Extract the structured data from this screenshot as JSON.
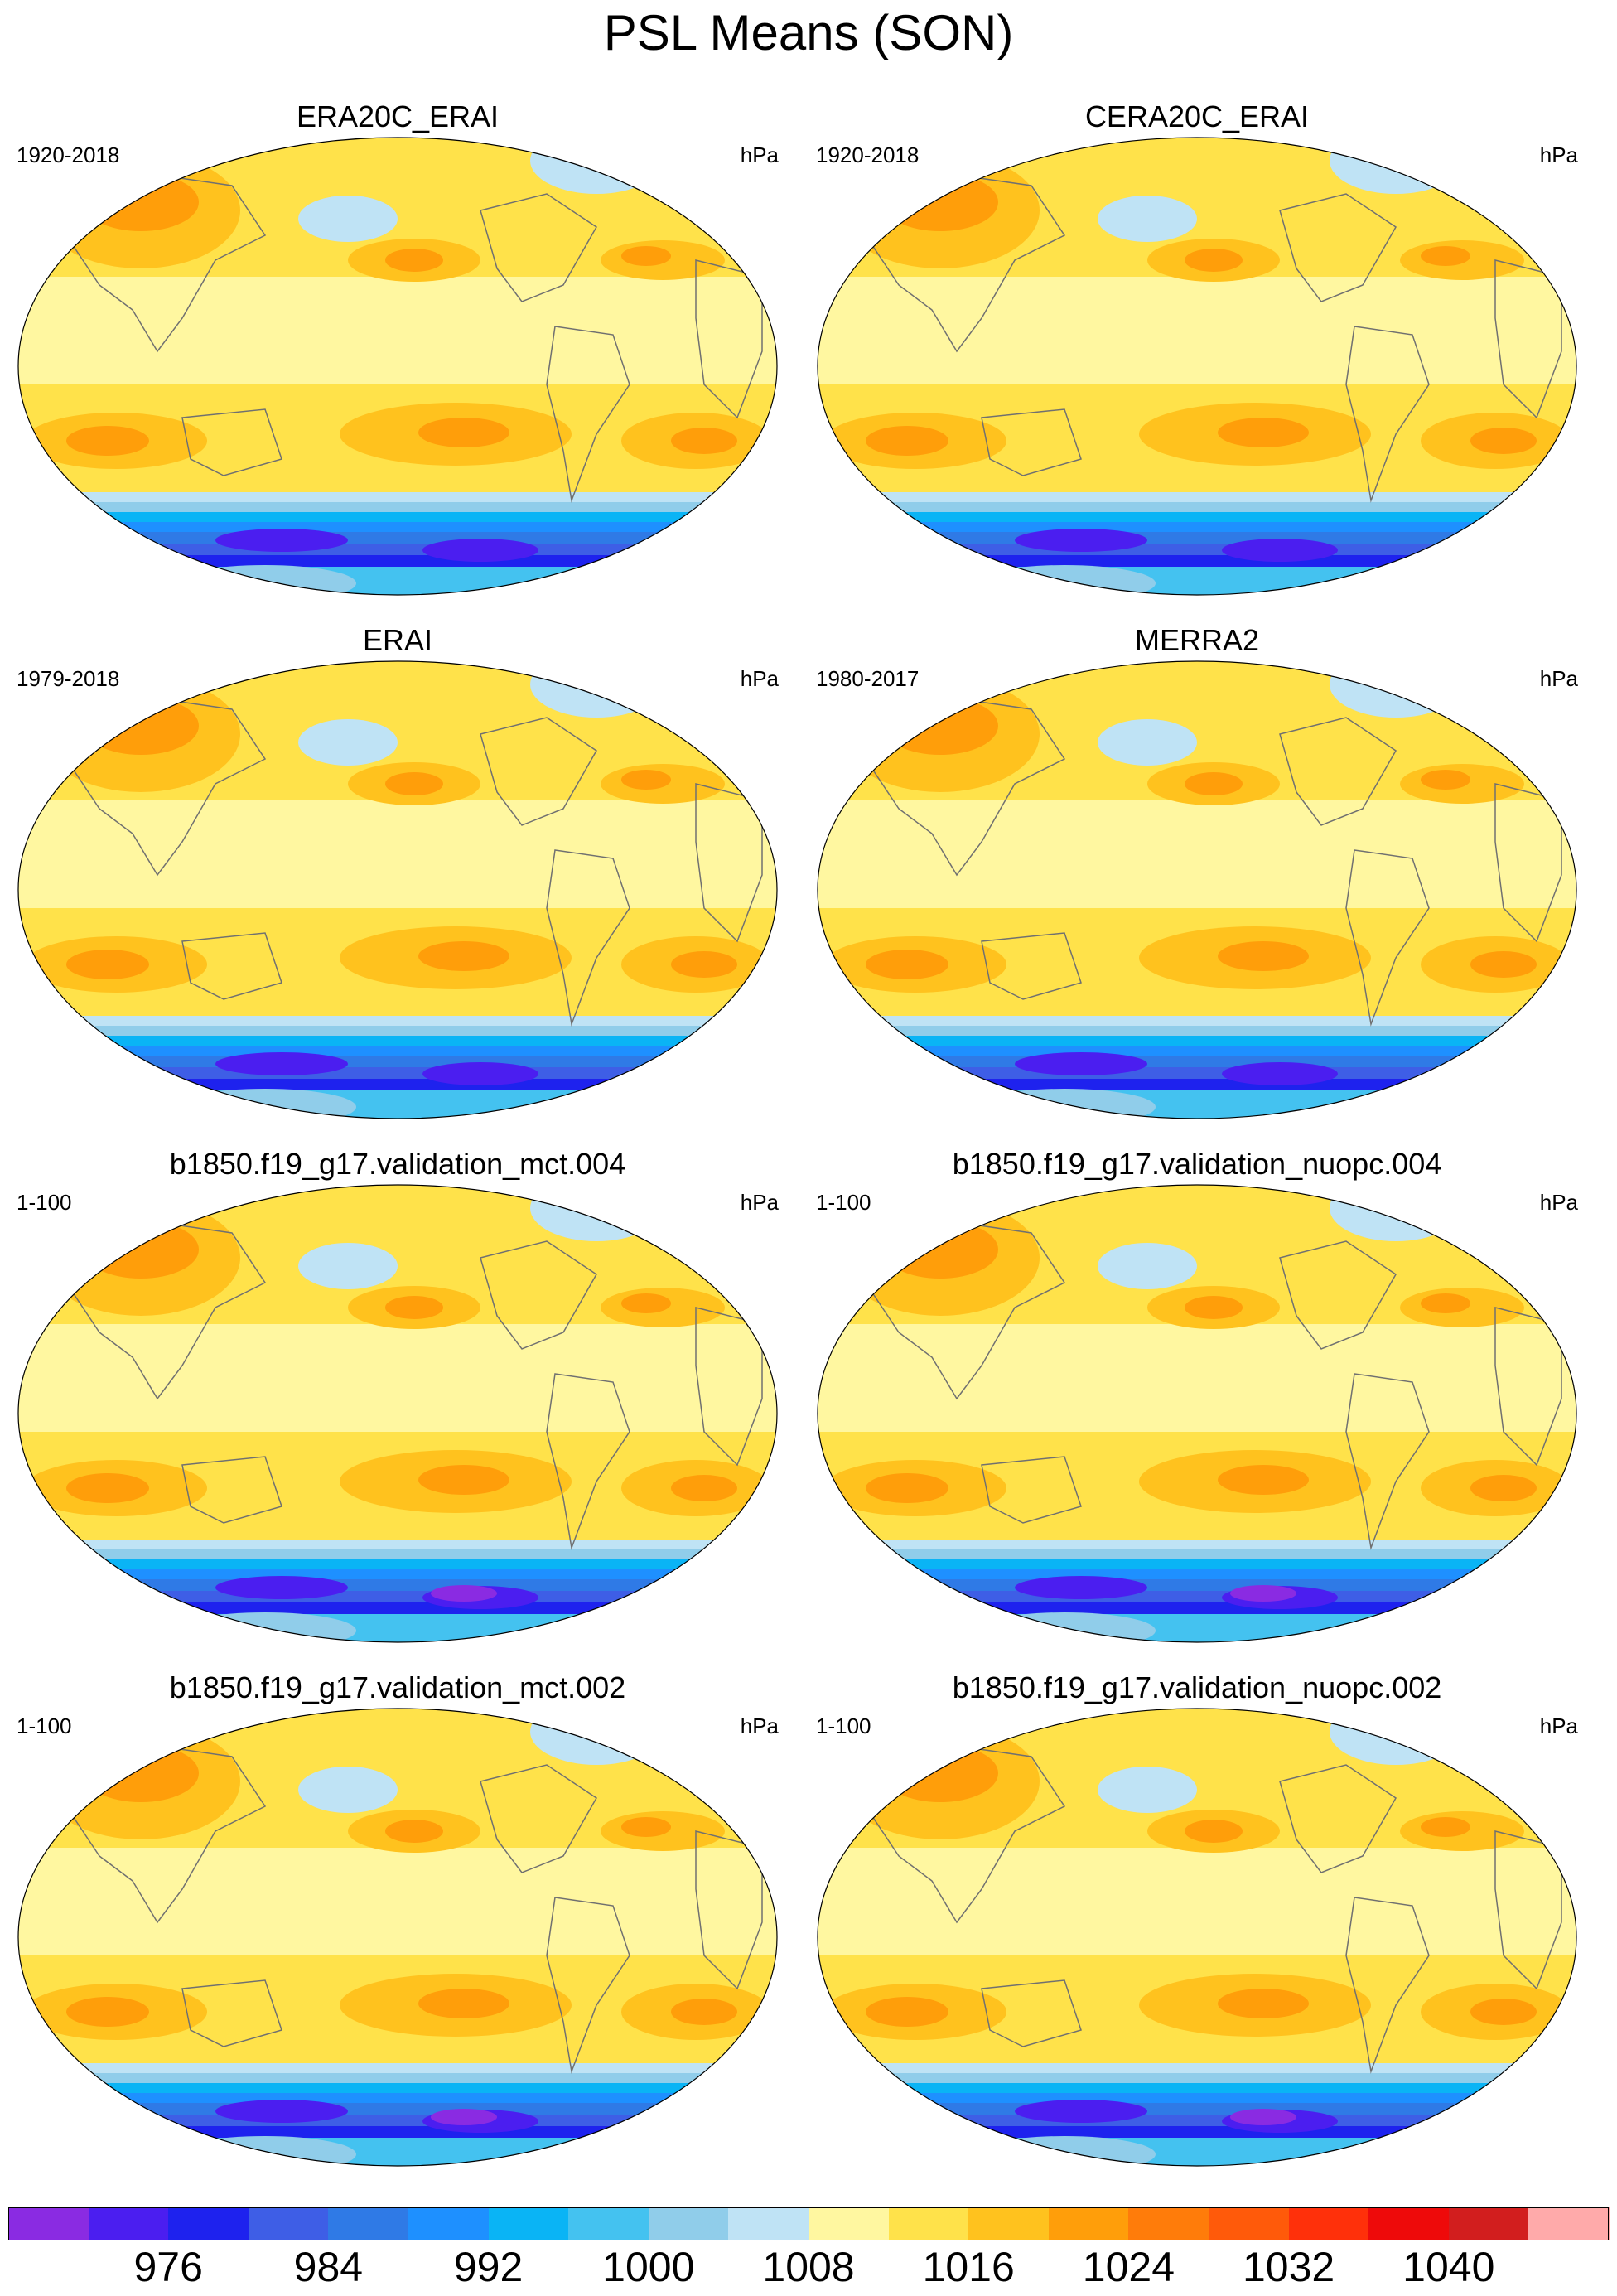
{
  "title": "PSL Means (SON)",
  "units": "hPa",
  "panels": [
    {
      "title": "ERA20C_ERAI",
      "period": "1920-2018"
    },
    {
      "title": "CERA20C_ERAI",
      "period": "1920-2018"
    },
    {
      "title": "ERAI",
      "period": "1979-2018"
    },
    {
      "title": "MERRA2",
      "period": "1980-2017"
    },
    {
      "title": "b1850.f19_g17.validation_mct.004",
      "period": "1-100"
    },
    {
      "title": "b1850.f19_g17.validation_nuopc.004",
      "period": "1-100"
    },
    {
      "title": "b1850.f19_g17.validation_mct.002",
      "period": "1-100"
    },
    {
      "title": "b1850.f19_g17.validation_nuopc.002",
      "period": "1-100"
    }
  ],
  "colorbar": {
    "colors": [
      "#8a2be2",
      "#4b1ef0",
      "#1e22ee",
      "#3e5ee6",
      "#2f7ae6",
      "#1e90ff",
      "#0ab4f5",
      "#44c2f0",
      "#90cdea",
      "#bfe3f5",
      "#fff7a0",
      "#ffe24a",
      "#ffc21e",
      "#ff9e0a",
      "#ff7c0a",
      "#ff5a0a",
      "#ff300a",
      "#ee0a0a",
      "#d21e1e",
      "#ffaaaa"
    ],
    "labels": [
      "976",
      "984",
      "992",
      "1000",
      "1008",
      "1016",
      "1024",
      "1032",
      "1040"
    ]
  }
}
